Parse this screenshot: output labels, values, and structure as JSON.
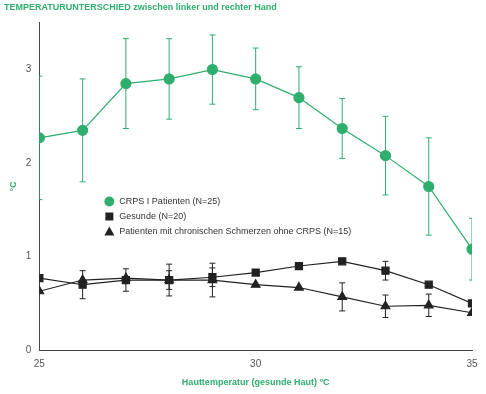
{
  "chart_data": {
    "type": "line",
    "title": "TEMPERATURUNTERSCHIED zwischen linker und rechter Hand",
    "x_label": "Hauttemperatur (gesunde Haut) °C",
    "y_label": "°C",
    "x": [
      25,
      26,
      27,
      28,
      29,
      30,
      31,
      32,
      33,
      34,
      35
    ],
    "series": [
      {
        "name": "CRPS I Patienten (N=25)",
        "color": "#2fae6e",
        "marker": "circle",
        "values": [
          2.27,
          2.35,
          2.85,
          2.9,
          3.0,
          2.9,
          2.7,
          2.37,
          2.08,
          1.75,
          1.08
        ],
        "error": [
          0.66,
          0.55,
          0.48,
          0.43,
          0.37,
          0.33,
          0.33,
          0.32,
          0.42,
          0.52,
          0.33
        ]
      },
      {
        "name": "Gesunde (N=20)",
        "color": "#222222",
        "marker": "square",
        "values": [
          0.77,
          0.7,
          0.75,
          0.75,
          0.78,
          0.83,
          0.9,
          0.95,
          0.85,
          0.7,
          0.5
        ],
        "error": [
          null,
          0.15,
          0.12,
          0.1,
          0.1,
          null,
          null,
          null,
          0.1,
          null,
          null
        ]
      },
      {
        "name": "Patienten mit chronischen Schmerzen ohne CRPS (N=15)",
        "color": "#222222",
        "marker": "triangle",
        "values": [
          0.63,
          0.75,
          0.77,
          0.75,
          0.75,
          0.7,
          0.67,
          0.57,
          0.47,
          0.48,
          0.4
        ],
        "error": [
          null,
          null,
          null,
          0.17,
          0.18,
          null,
          null,
          0.15,
          0.12,
          0.12,
          null
        ]
      }
    ],
    "xlim": [
      25,
      35
    ],
    "xticks": [
      25,
      30,
      35
    ],
    "ylim": [
      0,
      3.5
    ],
    "yticks": [
      0,
      1,
      2,
      3
    ],
    "grid": false,
    "legend": "center left"
  }
}
